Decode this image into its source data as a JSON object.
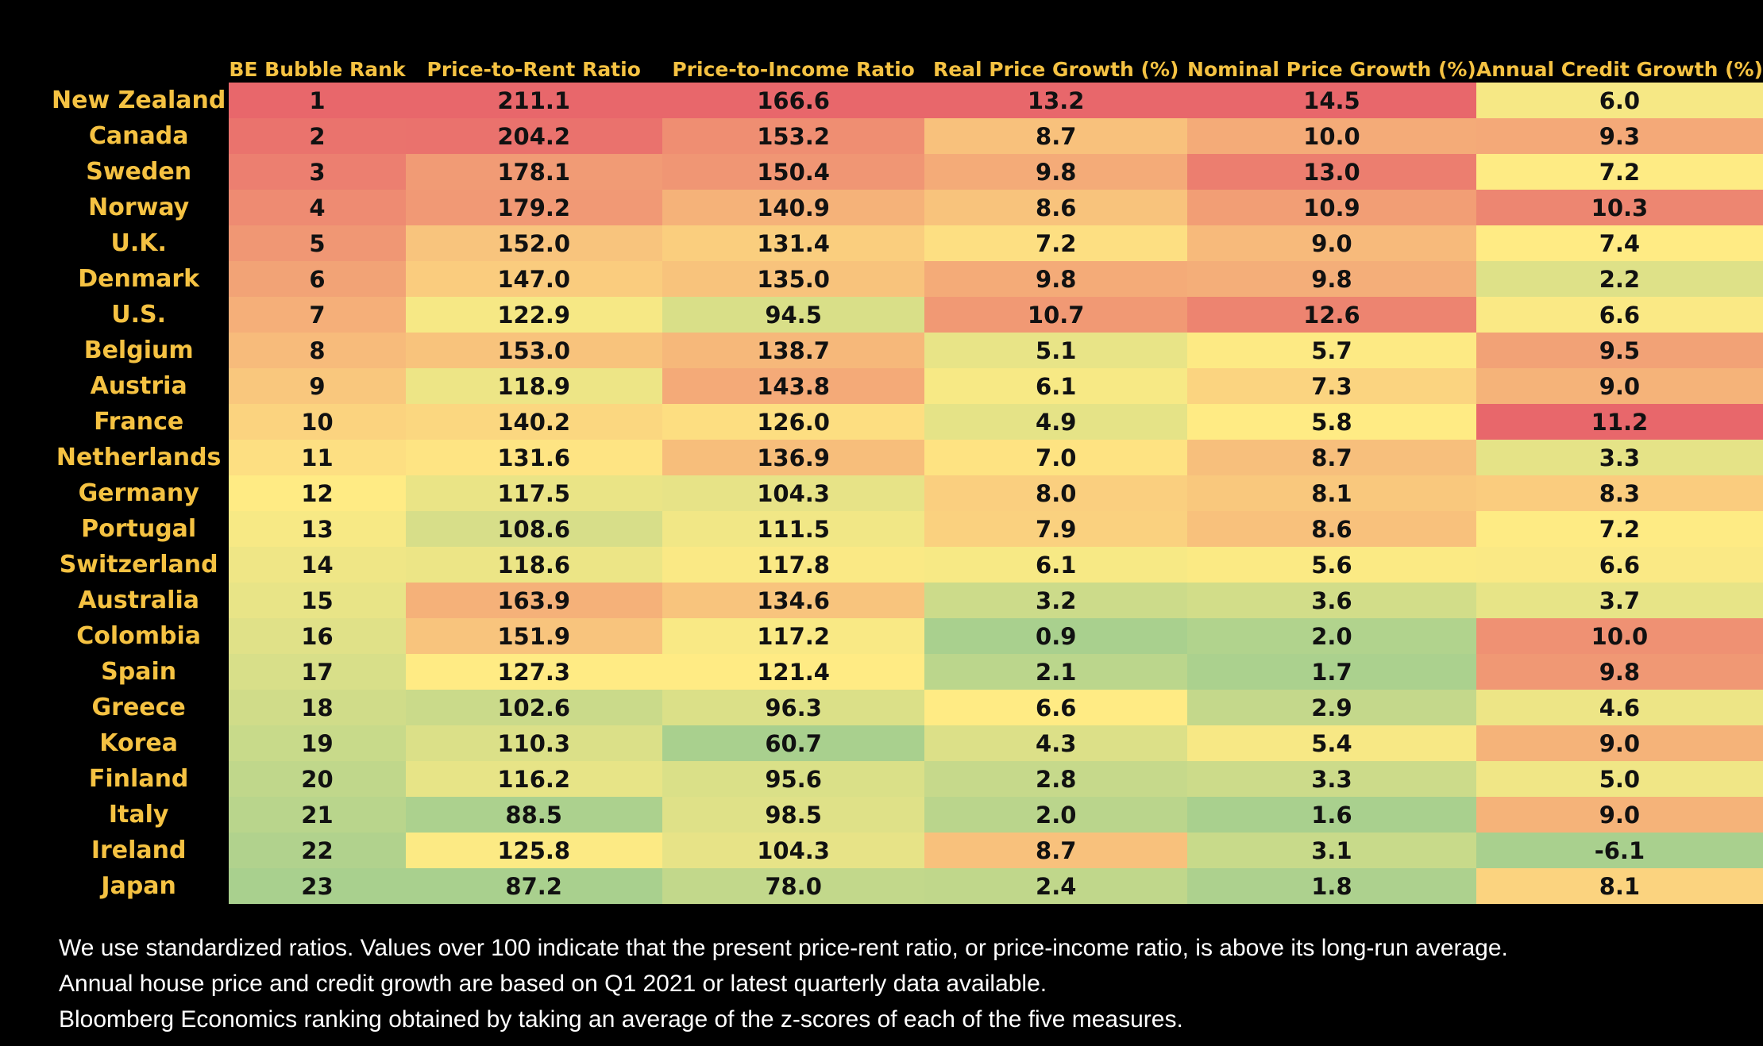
{
  "chart_data": {
    "type": "heatmap",
    "columns": [
      "BE Bubble Rank",
      "Price-to-Rent Ratio",
      "Price-to-Income Ratio",
      "Real Price Growth (%)",
      "Nominal Price Growth (%)",
      "Annual Credit Growth (%)"
    ],
    "rows": [
      {
        "country": "New Zealand",
        "values": [
          "1",
          "211.1",
          "166.6",
          "13.2",
          "14.5",
          "6.0"
        ]
      },
      {
        "country": "Canada",
        "values": [
          "2",
          "204.2",
          "153.2",
          "8.7",
          "10.0",
          "9.3"
        ]
      },
      {
        "country": "Sweden",
        "values": [
          "3",
          "178.1",
          "150.4",
          "9.8",
          "13.0",
          "7.2"
        ]
      },
      {
        "country": "Norway",
        "values": [
          "4",
          "179.2",
          "140.9",
          "8.6",
          "10.9",
          "10.3"
        ]
      },
      {
        "country": "U.K.",
        "values": [
          "5",
          "152.0",
          "131.4",
          "7.2",
          "9.0",
          "7.4"
        ]
      },
      {
        "country": "Denmark",
        "values": [
          "6",
          "147.0",
          "135.0",
          "9.8",
          "9.8",
          "2.2"
        ]
      },
      {
        "country": "U.S.",
        "values": [
          "7",
          "122.9",
          "94.5",
          "10.7",
          "12.6",
          "6.6"
        ]
      },
      {
        "country": "Belgium",
        "values": [
          "8",
          "153.0",
          "138.7",
          "5.1",
          "5.7",
          "9.5"
        ]
      },
      {
        "country": "Austria",
        "values": [
          "9",
          "118.9",
          "143.8",
          "6.1",
          "7.3",
          "9.0"
        ]
      },
      {
        "country": "France",
        "values": [
          "10",
          "140.2",
          "126.0",
          "4.9",
          "5.8",
          "11.2"
        ]
      },
      {
        "country": "Netherlands",
        "values": [
          "11",
          "131.6",
          "136.9",
          "7.0",
          "8.7",
          "3.3"
        ]
      },
      {
        "country": "Germany",
        "values": [
          "12",
          "117.5",
          "104.3",
          "8.0",
          "8.1",
          "8.3"
        ]
      },
      {
        "country": "Portugal",
        "values": [
          "13",
          "108.6",
          "111.5",
          "7.9",
          "8.6",
          "7.2"
        ]
      },
      {
        "country": "Switzerland",
        "values": [
          "14",
          "118.6",
          "117.8",
          "6.1",
          "5.6",
          "6.6"
        ]
      },
      {
        "country": "Australia",
        "values": [
          "15",
          "163.9",
          "134.6",
          "3.2",
          "3.6",
          "3.7"
        ]
      },
      {
        "country": "Colombia",
        "values": [
          "16",
          "151.9",
          "117.2",
          "0.9",
          "2.0",
          "10.0"
        ]
      },
      {
        "country": "Spain",
        "values": [
          "17",
          "127.3",
          "121.4",
          "2.1",
          "1.7",
          "9.8"
        ]
      },
      {
        "country": "Greece",
        "values": [
          "18",
          "102.6",
          "96.3",
          "6.6",
          "2.9",
          "4.6"
        ]
      },
      {
        "country": "Korea",
        "values": [
          "19",
          "110.3",
          "60.7",
          "4.3",
          "5.4",
          "9.0"
        ]
      },
      {
        "country": "Finland",
        "values": [
          "20",
          "116.2",
          "95.6",
          "2.8",
          "3.3",
          "5.0"
        ]
      },
      {
        "country": "Italy",
        "values": [
          "21",
          "88.5",
          "98.5",
          "2.0",
          "1.6",
          "9.0"
        ]
      },
      {
        "country": "Ireland",
        "values": [
          "22",
          "125.8",
          "104.3",
          "8.7",
          "3.1",
          "-6.1"
        ]
      },
      {
        "country": "Japan",
        "values": [
          "23",
          "87.2",
          "78.0",
          "2.4",
          "1.8",
          "8.1"
        ]
      }
    ],
    "color_scale": {
      "low": "#A9D08E",
      "mid": "#FFEB84",
      "high": "#E8676B"
    },
    "label_color": "#F5C242"
  },
  "footnotes": [
    "We use standardized ratios. Values over 100 indicate that the present price-rent ratio, or price-income ratio, is above its long-run average.",
    "Annual house price and credit growth are based on Q1 2021 or latest quarterly data available.",
    "Bloomberg Economics ranking obtained by taking an average of the z-scores of each of the five measures."
  ]
}
